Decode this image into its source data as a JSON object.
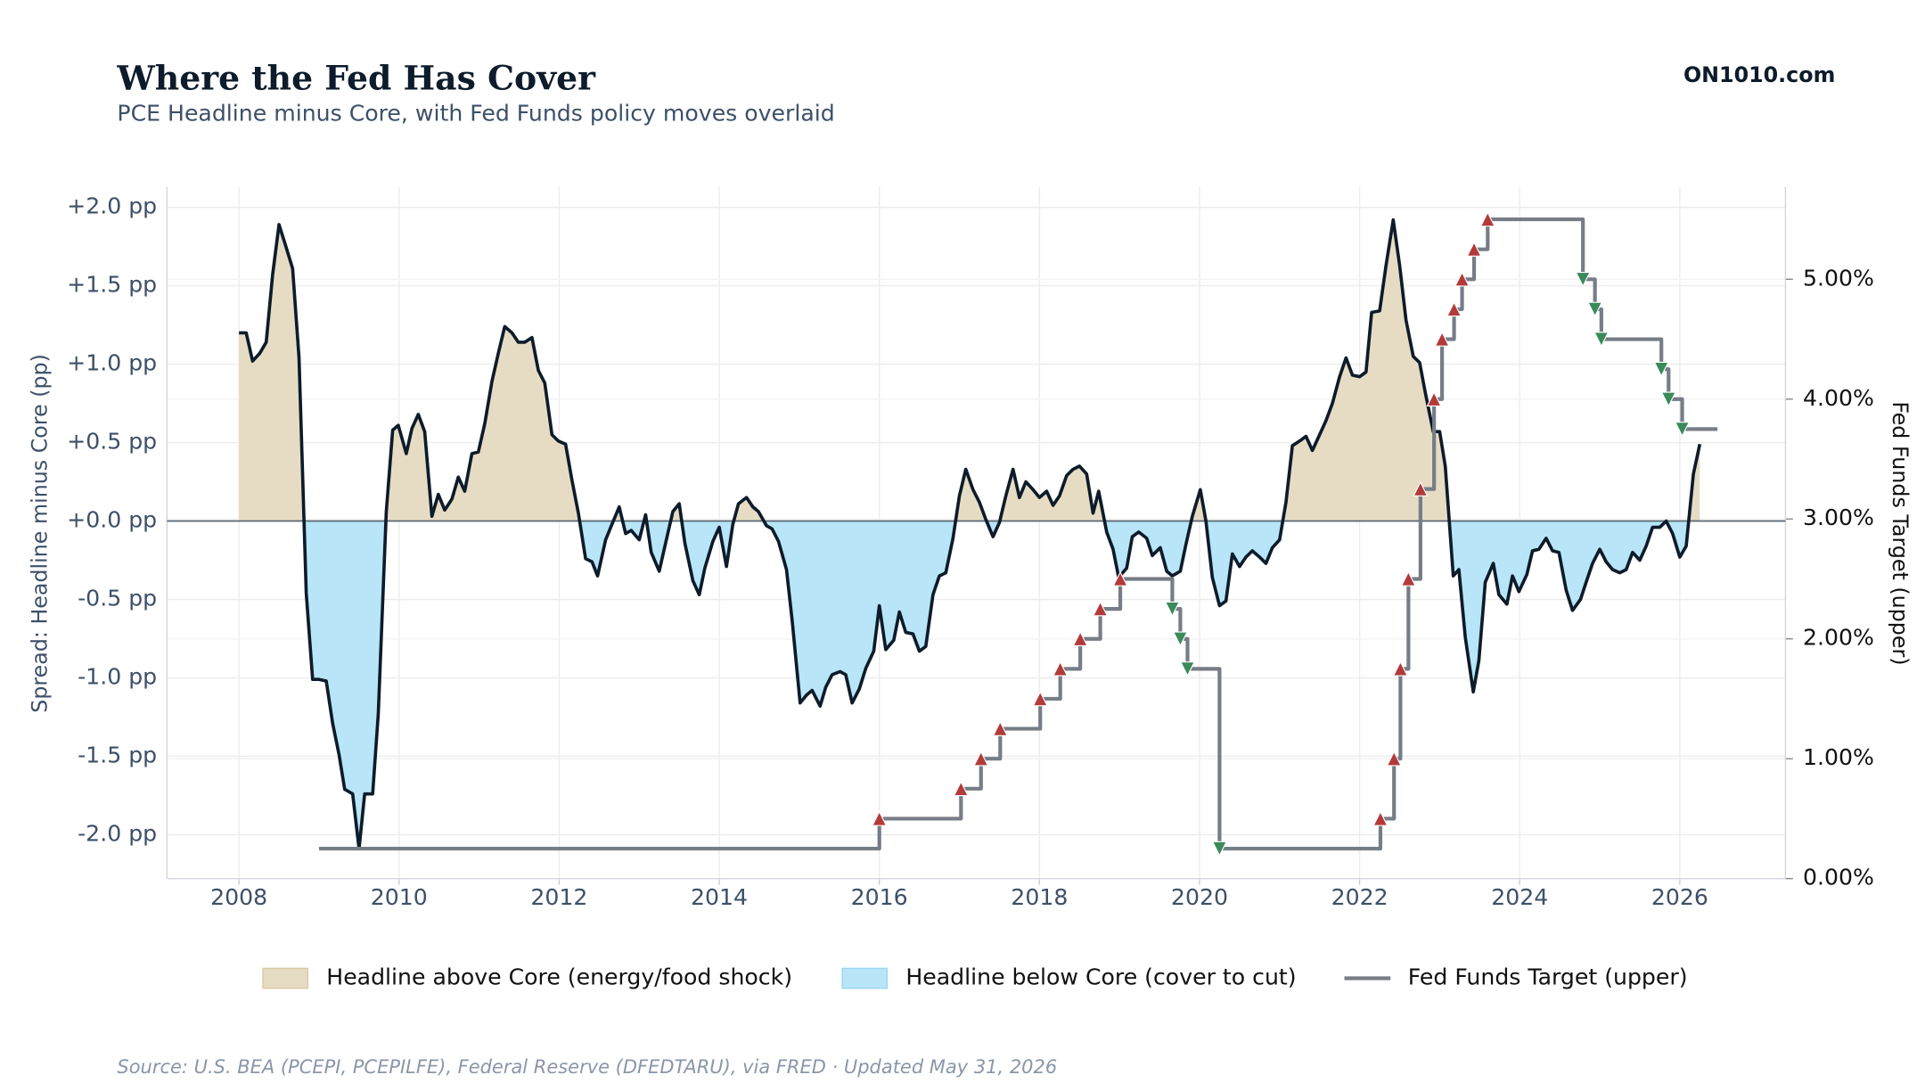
{
  "chart_data": {
    "type": "line",
    "title": "Where the Fed Has Cover",
    "subtitle": "PCE Headline minus Core, with Fed Funds policy moves overlaid",
    "brand": "ON1010.com",
    "source": "Source: U.S. BEA (PCEPI, PCEPILFE), Federal Reserve (DFEDTARU), via FRED · Updated May 31, 2026",
    "ylabel": "Spread: Headline minus Core (pp)",
    "y2label": "Fed Funds Target (upper)",
    "xlim": [
      2007.1,
      2027.32
    ],
    "xticks": [
      2008,
      2010,
      2012,
      2014,
      2016,
      2018,
      2020,
      2022,
      2024,
      2026
    ],
    "ylim": [
      -2.28,
      2.13
    ],
    "yticks": [
      {
        "value": -2,
        "label": "-2.0 pp"
      },
      {
        "value": -1.5,
        "label": "-1.5 pp"
      },
      {
        "value": -1,
        "label": "-1.0 pp"
      },
      {
        "value": -0.5,
        "label": "-0.5 pp"
      },
      {
        "value": 0,
        "label": "+0.0 pp"
      },
      {
        "value": 0.5,
        "label": "+0.5 pp"
      },
      {
        "value": 1,
        "label": "+1.0 pp"
      },
      {
        "value": 1.5,
        "label": "+1.5 pp"
      },
      {
        "value": 2,
        "label": "+2.0 pp"
      }
    ],
    "y2lim": [
      0,
      5.77
    ],
    "y2ticks": [
      {
        "value": 0,
        "label": "0.00%"
      },
      {
        "value": 1,
        "label": "1.00%"
      },
      {
        "value": 2,
        "label": "2.00%"
      },
      {
        "value": 3,
        "label": "3.00%"
      },
      {
        "value": 4,
        "label": "4.00%"
      },
      {
        "value": 5,
        "label": "5.00%"
      }
    ],
    "grid": true,
    "fill_above": {
      "name": "Headline above Core (energy/food shock)",
      "color": "#e6dcc4",
      "edge": "#d8c9a3"
    },
    "fill_below": {
      "name": "Headline below Core (cover to cut)",
      "color": "#b8e5f8",
      "edge": "#9cd6f0"
    },
    "spread": {
      "color": "#0d1b2a",
      "x": [
        2008.0,
        2008.09,
        2008.17,
        2008.26,
        2008.34,
        2008.42,
        2008.5,
        2008.58,
        2008.67,
        2008.75,
        2008.84,
        2008.92,
        2009.0,
        2009.09,
        2009.17,
        2009.25,
        2009.32,
        2009.42,
        2009.5,
        2009.57,
        2009.67,
        2009.74,
        2009.84,
        2009.92,
        2009.99,
        2010.09,
        2010.16,
        2010.24,
        2010.32,
        2010.41,
        2010.49,
        2010.57,
        2010.66,
        2010.74,
        2010.82,
        2010.91,
        2010.99,
        2011.07,
        2011.16,
        2011.24,
        2011.32,
        2011.41,
        2011.49,
        2011.57,
        2011.66,
        2011.74,
        2011.82,
        2011.91,
        2011.99,
        2012.08,
        2012.16,
        2012.24,
        2012.33,
        2012.41,
        2012.48,
        2012.58,
        2012.66,
        2012.75,
        2012.83,
        2012.9,
        2013.0,
        2013.08,
        2013.15,
        2013.25,
        2013.33,
        2013.42,
        2013.5,
        2013.57,
        2013.67,
        2013.75,
        2013.82,
        2013.92,
        2014.0,
        2014.09,
        2014.17,
        2014.24,
        2014.34,
        2014.42,
        2014.49,
        2014.59,
        2014.66,
        2014.74,
        2014.84,
        2014.91,
        2015.01,
        2015.09,
        2015.16,
        2015.26,
        2015.33,
        2015.41,
        2015.51,
        2015.58,
        2015.66,
        2015.75,
        2015.83,
        2015.93,
        2016.0,
        2016.08,
        2016.18,
        2016.25,
        2016.33,
        2016.42,
        2016.5,
        2016.58,
        2016.67,
        2016.75,
        2016.83,
        2016.92,
        2017.0,
        2017.08,
        2017.17,
        2017.25,
        2017.33,
        2017.42,
        2017.5,
        2017.58,
        2017.67,
        2017.75,
        2017.83,
        2017.92,
        2018.0,
        2018.09,
        2018.17,
        2018.25,
        2018.34,
        2018.42,
        2018.5,
        2018.59,
        2018.67,
        2018.74,
        2018.84,
        2018.92,
        2018.99,
        2019.09,
        2019.16,
        2019.24,
        2019.34,
        2019.41,
        2019.51,
        2019.59,
        2019.66,
        2019.76,
        2019.83,
        2019.91,
        2020.01,
        2020.08,
        2020.16,
        2020.25,
        2020.33,
        2020.41,
        2020.5,
        2020.58,
        2020.66,
        2020.75,
        2020.83,
        2020.91,
        2021.0,
        2021.08,
        2021.16,
        2021.25,
        2021.33,
        2021.41,
        2021.5,
        2021.58,
        2021.66,
        2021.75,
        2021.83,
        2021.91,
        2022.0,
        2022.08,
        2022.15,
        2022.25,
        2022.33,
        2022.42,
        2022.5,
        2022.58,
        2022.67,
        2022.75,
        2022.82,
        2022.92,
        2023.0,
        2023.07,
        2023.17,
        2023.24,
        2023.32,
        2023.42,
        2023.49,
        2023.57,
        2023.67,
        2023.74,
        2023.84,
        2023.91,
        2023.99,
        2024.09,
        2024.16,
        2024.24,
        2024.33,
        2024.41,
        2024.49,
        2024.58,
        2024.66,
        2024.76,
        2024.83,
        2024.91,
        2025.0,
        2025.08,
        2025.16,
        2025.25,
        2025.33,
        2025.41,
        2025.5,
        2025.58,
        2025.66,
        2025.75,
        2025.83,
        2025.91,
        2026.0,
        2026.08,
        2026.17,
        2026.25
      ],
      "values": [
        1.2,
        1.2,
        1.02,
        1.07,
        1.14,
        1.57,
        1.89,
        1.76,
        1.61,
        1.04,
        -0.46,
        -1.01,
        -1.01,
        -1.02,
        -1.29,
        -1.49,
        -1.71,
        -1.74,
        -2.09,
        -1.74,
        -1.74,
        -1.23,
        0.06,
        0.58,
        0.61,
        0.43,
        0.59,
        0.68,
        0.57,
        0.03,
        0.17,
        0.07,
        0.14,
        0.28,
        0.19,
        0.43,
        0.44,
        0.62,
        0.89,
        1.07,
        1.24,
        1.2,
        1.14,
        1.14,
        1.17,
        0.96,
        0.88,
        0.55,
        0.51,
        0.49,
        0.26,
        0.05,
        -0.24,
        -0.26,
        -0.35,
        -0.12,
        -0.02,
        0.09,
        -0.08,
        -0.06,
        -0.12,
        0.04,
        -0.2,
        -0.32,
        -0.14,
        0.06,
        0.11,
        -0.14,
        -0.38,
        -0.47,
        -0.3,
        -0.13,
        -0.04,
        -0.29,
        -0.02,
        0.11,
        0.15,
        0.09,
        0.06,
        -0.03,
        -0.05,
        -0.13,
        -0.31,
        -0.63,
        -1.16,
        -1.11,
        -1.08,
        -1.18,
        -1.06,
        -0.98,
        -0.96,
        -0.98,
        -1.16,
        -1.07,
        -0.94,
        -0.83,
        -0.54,
        -0.82,
        -0.76,
        -0.58,
        -0.71,
        -0.72,
        -0.83,
        -0.8,
        -0.47,
        -0.35,
        -0.33,
        -0.11,
        0.16,
        0.33,
        0.2,
        0.12,
        0.01,
        -0.1,
        -0.01,
        0.16,
        0.33,
        0.15,
        0.25,
        0.2,
        0.15,
        0.19,
        0.1,
        0.16,
        0.29,
        0.33,
        0.35,
        0.3,
        0.05,
        0.19,
        -0.07,
        -0.18,
        -0.36,
        -0.3,
        -0.1,
        -0.07,
        -0.11,
        -0.22,
        -0.17,
        -0.32,
        -0.35,
        -0.32,
        -0.15,
        0.03,
        0.2,
        0.0,
        -0.36,
        -0.54,
        -0.51,
        -0.21,
        -0.29,
        -0.23,
        -0.19,
        -0.23,
        -0.27,
        -0.17,
        -0.12,
        0.12,
        0.48,
        0.51,
        0.54,
        0.45,
        0.55,
        0.64,
        0.75,
        0.92,
        1.04,
        0.93,
        0.92,
        0.95,
        1.33,
        1.34,
        1.63,
        1.92,
        1.63,
        1.28,
        1.05,
        1.01,
        0.82,
        0.57,
        0.57,
        0.35,
        -0.35,
        -0.31,
        -0.74,
        -1.09,
        -0.89,
        -0.39,
        -0.27,
        -0.47,
        -0.53,
        -0.35,
        -0.45,
        -0.34,
        -0.19,
        -0.18,
        -0.11,
        -0.19,
        -0.2,
        -0.44,
        -0.57,
        -0.5,
        -0.39,
        -0.27,
        -0.18,
        -0.26,
        -0.31,
        -0.33,
        -0.31,
        -0.2,
        -0.25,
        -0.16,
        -0.04,
        -0.04,
        0.0,
        -0.08,
        -0.23,
        -0.16,
        0.3,
        0.49
      ]
    },
    "series": [
      {
        "name": "Fed Funds Target (upper)",
        "color": "#767d87",
        "axis": "y2",
        "hike_color": "#b23a3a",
        "cut_color": "#3a8a5a",
        "x": [
          2009.0,
          2016.0,
          2017.02,
          2017.27,
          2017.51,
          2018.01,
          2018.26,
          2018.51,
          2018.76,
          2019.01,
          2019.66,
          2019.76,
          2019.85,
          2020.25,
          2022.26,
          2022.43,
          2022.51,
          2022.61,
          2022.76,
          2022.93,
          2023.03,
          2023.18,
          2023.28,
          2023.43,
          2023.6,
          2024.79,
          2024.94,
          2025.02,
          2025.77,
          2025.86,
          2026.03,
          2026.47
        ],
        "values": [
          0.25,
          0.5,
          0.75,
          1.0,
          1.25,
          1.5,
          1.75,
          2.0,
          2.25,
          2.5,
          2.25,
          2.0,
          1.75,
          0.25,
          0.5,
          1.0,
          1.75,
          2.5,
          3.25,
          4.0,
          4.5,
          4.75,
          5.0,
          5.25,
          5.5,
          5.0,
          4.75,
          4.5,
          4.25,
          4.0,
          3.75,
          3.75
        ]
      }
    ]
  }
}
